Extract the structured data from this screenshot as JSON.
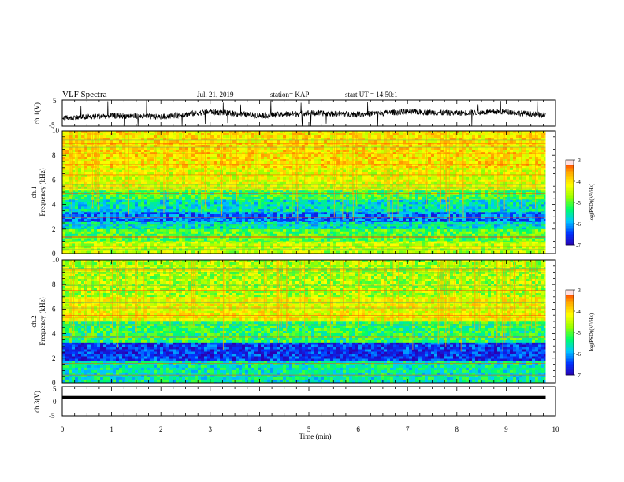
{
  "header": {
    "title": "VLF Spectra",
    "date": "Jul. 21, 2019",
    "station": "station= KAP",
    "start": "start UT = 14:50:1"
  },
  "colors": {
    "waveform": "#000000",
    "colormap": [
      "#2a00b0",
      "#0033ff",
      "#00c8ff",
      "#00ff66",
      "#99ff00",
      "#ffff00",
      "#ffaa00",
      "#ff2200",
      "#ffffff"
    ]
  },
  "chart_data": [
    {
      "type": "line",
      "panel": "ch1-waveform",
      "ylabel": "ch.1(V)",
      "ylim": [
        -5,
        5
      ],
      "yticks": [
        "5",
        "-5"
      ],
      "xlim": [
        0,
        10
      ],
      "description_values": {
        "x": [
          0,
          1,
          2,
          3,
          4,
          5,
          6,
          7,
          8,
          9,
          9.8
        ],
        "y": [
          -2.0,
          -1.0,
          -1.5,
          0.5,
          -1.0,
          0.0,
          -0.5,
          0.5,
          0.0,
          0.5,
          -1.0
        ]
      }
    },
    {
      "type": "heatmap",
      "panel": "ch1-spectrogram",
      "ylabel": "ch.1 Frequency (kHz)",
      "ylim": [
        0,
        10
      ],
      "yticks": [
        "0",
        "2",
        "4",
        "6",
        "8",
        "10"
      ],
      "xlim": [
        0,
        10
      ],
      "data_end_min": 9.8,
      "bands": [
        {
          "f": [
            0,
            1
          ],
          "level": -4.5
        },
        {
          "f": [
            1,
            2
          ],
          "level": -5.0
        },
        {
          "f": [
            2,
            2.6
          ],
          "level": -5.6
        },
        {
          "f": [
            2.6,
            3.4
          ],
          "level": -6.2
        },
        {
          "f": [
            3.4,
            4.4
          ],
          "level": -5.6
        },
        {
          "f": [
            4.4,
            5.2
          ],
          "level": -5.1
        },
        {
          "f": [
            5.2,
            7.0
          ],
          "level": -4.3
        },
        {
          "f": [
            7.0,
            10
          ],
          "level": -4.0
        }
      ],
      "colorbar": {
        "label": "log(PSD)(V²/Hz)",
        "range": [
          -7,
          -3
        ],
        "ticks": [
          "-3",
          "-4",
          "-5",
          "-6",
          "-7"
        ]
      }
    },
    {
      "type": "heatmap",
      "panel": "ch2-spectrogram",
      "ylabel": "ch.2 Frequency (kHz)",
      "ylim": [
        0,
        10
      ],
      "yticks": [
        "0",
        "2",
        "4",
        "6",
        "8",
        "10"
      ],
      "xlim": [
        0,
        10
      ],
      "data_end_min": 9.8,
      "bands": [
        {
          "f": [
            0,
            1.8
          ],
          "level": -5.5
        },
        {
          "f": [
            1.8,
            3.3
          ],
          "level": -6.5
        },
        {
          "f": [
            3.3,
            5.0
          ],
          "level": -5.2
        },
        {
          "f": [
            5.0,
            7.0
          ],
          "level": -4.2
        },
        {
          "f": [
            7.0,
            10
          ],
          "level": -4.6
        }
      ],
      "colorbar": {
        "label": "log(PSD)(V²/Hz)",
        "range": [
          -7,
          -3
        ],
        "ticks": [
          "-3",
          "-4",
          "-5",
          "-6",
          "-7"
        ]
      }
    },
    {
      "type": "line",
      "panel": "ch3-waveform",
      "ylabel": "ch.3(V)",
      "ylim": [
        -5,
        5
      ],
      "yticks": [
        "5",
        "0",
        "-5"
      ],
      "xlim": [
        0,
        10
      ],
      "xlabel": "Time (min)",
      "xticks": [
        "0",
        "1",
        "2",
        "3",
        "4",
        "5",
        "6",
        "7",
        "8",
        "9",
        "10"
      ],
      "description_values": {
        "x": [
          0,
          9.8
        ],
        "y": [
          1.3,
          1.3
        ]
      }
    }
  ]
}
